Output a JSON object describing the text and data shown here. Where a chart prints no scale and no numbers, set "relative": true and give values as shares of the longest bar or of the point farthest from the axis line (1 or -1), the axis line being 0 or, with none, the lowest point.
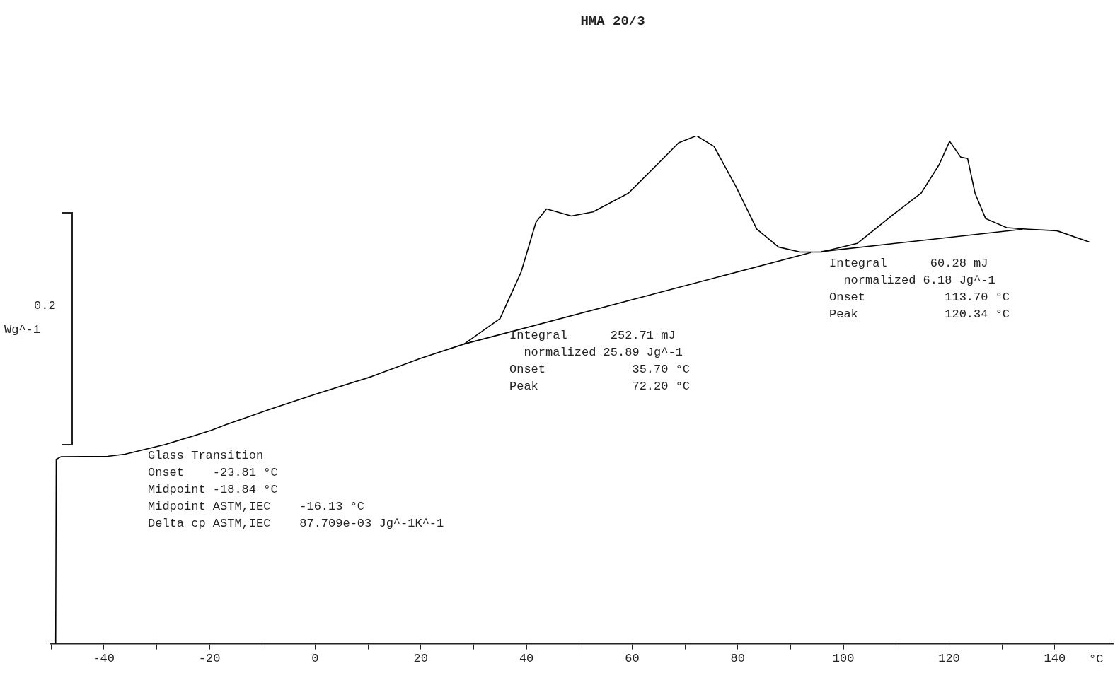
{
  "chart_data": {
    "type": "line",
    "title": "HMA 20/3",
    "xlabel": "°C",
    "relative": true,
    "tick_labels": "x",
    "grid": false,
    "legend": false,
    "marker": "none",
    "xlim": [
      -50,
      151
    ],
    "xticks": [
      {
        "value": -50,
        "label": null
      },
      -40,
      {
        "value": -30,
        "label": null
      },
      -20,
      {
        "value": -10,
        "label": null
      },
      0,
      {
        "value": 10,
        "label": null
      },
      20,
      {
        "value": 30,
        "label": null
      },
      40,
      {
        "value": 50,
        "label": null
      },
      60,
      {
        "value": 70,
        "label": null
      },
      80,
      {
        "value": 90,
        "label": null
      },
      100,
      {
        "value": 110,
        "label": null
      },
      120,
      {
        "value": 130,
        "label": null
      },
      140
    ],
    "series": [
      {
        "color": "#000000",
        "x": [
          -49.1,
          -49.0,
          -48.1,
          -39.3,
          -36,
          -28.5,
          -23.1,
          -19.7,
          -17,
          -8.2,
          0,
          10.7,
          20,
          28.2,
          35,
          39,
          41.8,
          43.8,
          45.8,
          48.5,
          52.6,
          59.3,
          64.7,
          68.8,
          72.2,
          75.5,
          79.6,
          83.6,
          87.7,
          91.8,
          95.8,
          102.6,
          109.3,
          114.7,
          118.1,
          120.1,
          122.2,
          123.5,
          124.9,
          126.9,
          130.9,
          135,
          140.4,
          146.5
        ],
        "values": [
          0,
          0.363,
          0.368,
          0.369,
          0.373,
          0.392,
          0.409,
          0.42,
          0.431,
          0.463,
          0.491,
          0.526,
          0.562,
          0.59,
          0.64,
          0.732,
          0.83,
          0.856,
          0.85,
          0.842,
          0.85,
          0.887,
          0.943,
          0.986,
          1,
          0.979,
          0.901,
          0.816,
          0.781,
          0.771,
          0.771,
          0.788,
          0.844,
          0.887,
          0.943,
          0.989,
          0.958,
          0.955,
          0.887,
          0.837,
          0.819,
          0.816,
          0.813,
          0.791
        ]
      },
      {
        "color": "#000000",
        "x": [
          28.2,
          93.8,
          94.6,
          95.8,
          133.9
        ],
        "values": [
          0.59,
          0.77,
          null,
          0.772,
          0.816
        ]
      }
    ],
    "annotations": [
      "0.2",
      "Wg^-1",
      "Integral      252.71 mJ",
      "  normalized 25.89 Jg^-1",
      "Onset            35.70 °C",
      "Peak             72.20 °C",
      "Integral      60.28 mJ",
      "  normalized 6.18 Jg^-1",
      "Onset           113.70 °C",
      "Peak            120.34 °C",
      "Glass Transition",
      "Onset    -23.81 °C",
      "Midpoint -18.84 °C",
      "Midpoint ASTM,IEC    -16.13 °C",
      "Delta cp ASTM,IEC    87.709e-03 Jg^-1K^-1"
    ]
  }
}
